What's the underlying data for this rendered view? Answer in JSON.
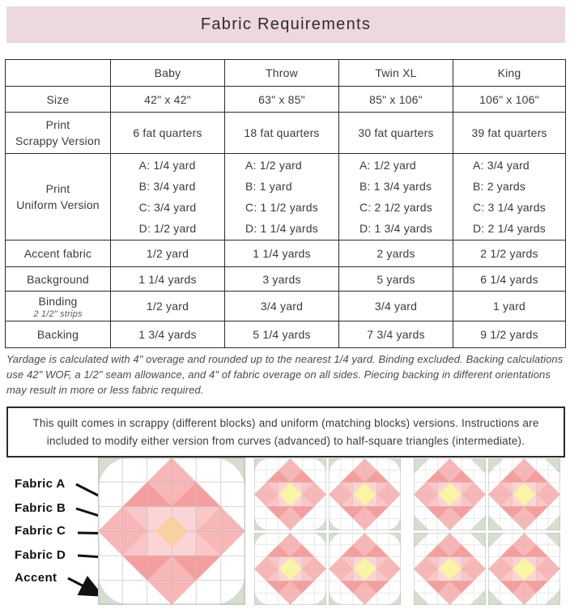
{
  "header": {
    "title": "Fabric Requirements",
    "bg_color": "#ECD8E1"
  },
  "table": {
    "columns": [
      "",
      "Baby",
      "Throw",
      "Twin XL",
      "King"
    ],
    "rows": [
      {
        "label": [
          "Size"
        ],
        "values": [
          "42\" x 42\"",
          "63\" x 85\"",
          "85\" x 106\"",
          "106\" x 106\""
        ]
      },
      {
        "label": [
          "Print",
          "Scrappy Version"
        ],
        "values": [
          "6 fat quarters",
          "18 fat quarters",
          "30 fat quarters",
          "39 fat quarters"
        ]
      },
      {
        "label": [
          "Print",
          "Uniform Version"
        ],
        "values": [
          [
            "A: 1/4 yard",
            "B: 3/4 yard",
            "C: 3/4 yard",
            "D: 1/2 yard"
          ],
          [
            "A: 1/2 yard",
            "B: 1 yard",
            "C: 1 1/2 yards",
            "D: 1 1/4 yards"
          ],
          [
            "A: 1/2 yard",
            "B: 1 3/4 yards",
            "C: 2 1/2 yards",
            "D: 1 3/4 yards"
          ],
          [
            "A: 3/4 yard",
            "B: 2 yards",
            "C: 3 1/4 yards",
            "D: 2 1/4 yards"
          ]
        ]
      },
      {
        "label": [
          "Accent fabric"
        ],
        "values": [
          "1/2 yard",
          "1 1/4 yards",
          "2 yards",
          "2 1/2 yards"
        ]
      },
      {
        "label": [
          "Background"
        ],
        "values": [
          "1 1/4 yards",
          "3 yards",
          "5 yards",
          "6 1/4 yards"
        ]
      },
      {
        "label": [
          "Binding"
        ],
        "sublabel": "2 1/2\" strips",
        "values": [
          "1/2 yard",
          "3/4 yard",
          "3/4 yard",
          "1 yard"
        ]
      },
      {
        "label": [
          "Backing"
        ],
        "values": [
          "1 3/4 yards",
          "5 1/4 yards",
          "7 3/4 yards",
          "9 1/2 yards"
        ]
      }
    ]
  },
  "footnote": "Yardage is calculated with 4\" overage and rounded up to the nearest 1/4 yard. Binding excluded. Backing calculations use 42\" WOF, a 1/2\" seam allowance, and 4\" of fabric overage on all sides. Piecing backing in different orientations may result in more or less fabric required.",
  "info_box": "This quilt comes in scrappy (different blocks) and uniform (matching blocks) versions.  Instructions are included to modify either version from curves (advanced) to half-square triangles (intermediate).",
  "legend": {
    "labels": [
      "Fabric A",
      "Fabric B",
      "Fabric C",
      "Fabric D",
      "Accent"
    ]
  },
  "colors": {
    "header_bg": "#ECD8E1",
    "ring_salmon": "#F59E9E",
    "petal_medium": "#F8B7B7",
    "side_light": "#F9C7C7",
    "inner_pink": "#FBD5D5",
    "center_orange": "#F9D0A0",
    "center_yellow": "#F9F5A4",
    "corner_green": "#D6DECF",
    "block_white": "#FFFFFF",
    "grid_gray": "#BBBFBB"
  }
}
